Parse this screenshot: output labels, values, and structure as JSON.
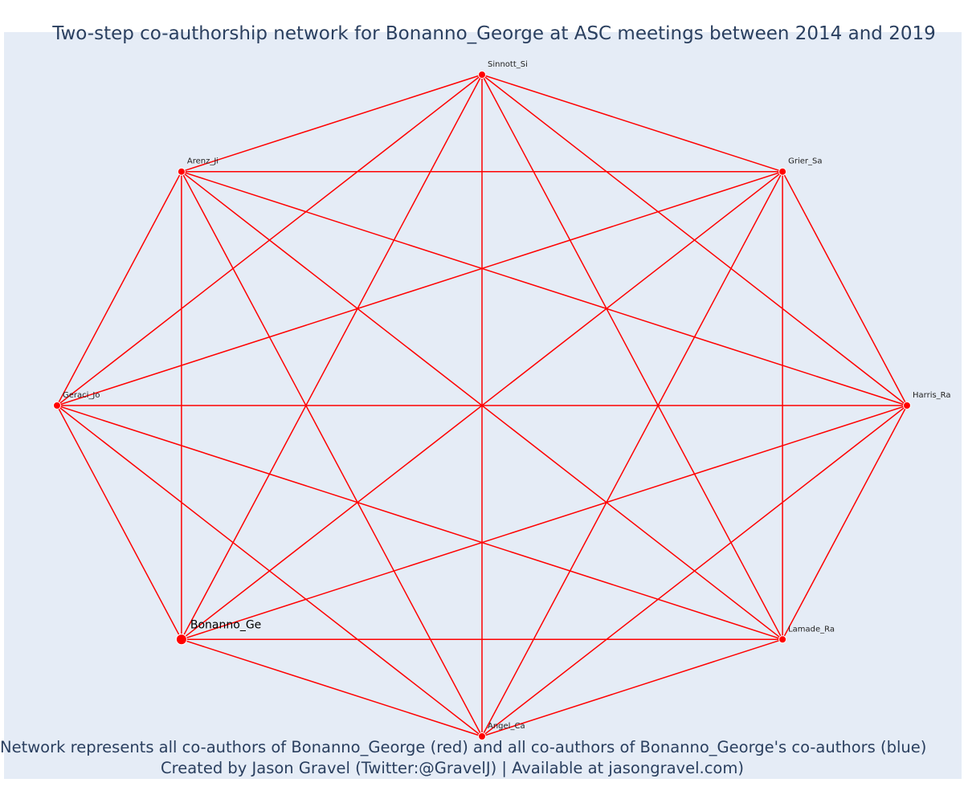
{
  "title": "Two-step co-authorship network for Bonanno_George at ASC meetings between 2014 and 2019",
  "caption": {
    "line1": "Network represents all co-authors of Bonanno_George (red) and all co-authors of Bonanno_George's co-authors (blue)",
    "line2": "Created by Jason Gravel (Twitter:@GravelJ) | Available at jasongravel.com)"
  },
  "colors": {
    "background": "#e5ecf6",
    "edge": "#ff0000",
    "node": "#ff0000",
    "node_outline": "#ffffff",
    "text": "#2a3f5f"
  },
  "network": {
    "focal": "Bonanno_Ge",
    "nodes": [
      {
        "id": "Sinnott_Si",
        "group": "co-author"
      },
      {
        "id": "Grier_Sa",
        "group": "co-author"
      },
      {
        "id": "Harris_Ra",
        "group": "co-author"
      },
      {
        "id": "Lamade_Ra",
        "group": "co-author"
      },
      {
        "id": "Angel_Ca",
        "group": "co-author"
      },
      {
        "id": "Bonanno_Ge",
        "group": "focal"
      },
      {
        "id": "Geraci_Jo",
        "group": "co-author"
      },
      {
        "id": "Arenz_Ji",
        "group": "co-author"
      }
    ],
    "edges": "complete"
  }
}
